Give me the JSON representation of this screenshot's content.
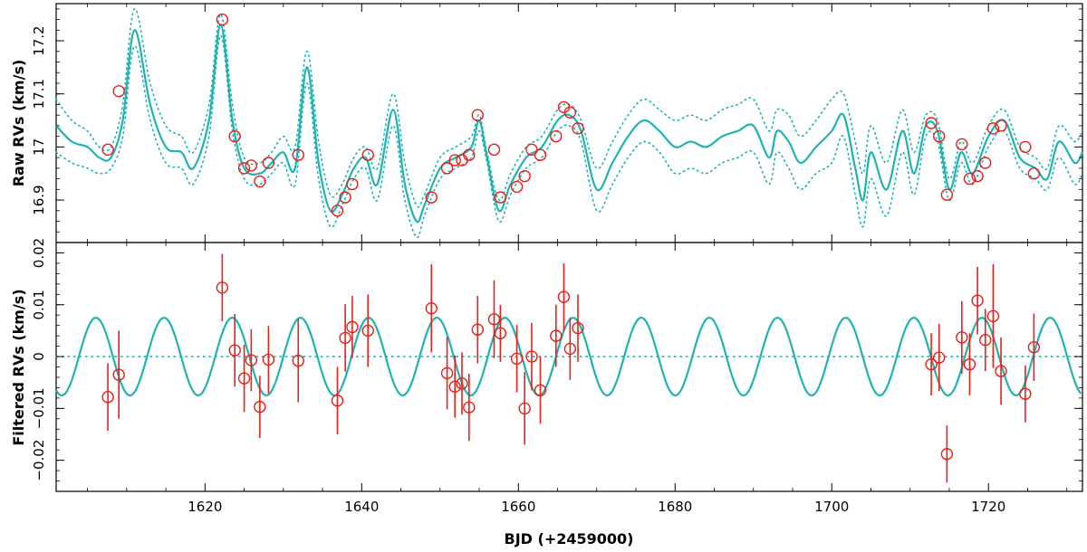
{
  "chart_data": [
    {
      "type": "line",
      "panel": "top",
      "title": "",
      "ylabel": "Raw RVs (km/s)",
      "xlim": [
        1601,
        1732
      ],
      "ylim": [
        16.82,
        17.27
      ],
      "yticks": [
        16.9,
        17,
        17.1,
        17.2
      ],
      "ytick_labels": [
        "16.9",
        "17",
        "17.1",
        "17.2"
      ],
      "xticks": [
        1620,
        1640,
        1660,
        1680,
        1700,
        1720
      ],
      "grid": false,
      "series": [
        {
          "role": "model",
          "style": "solid",
          "color": "#1fb3b3",
          "x": [
            1601,
            1603,
            1605,
            1606.5,
            1608,
            1609.5,
            1611,
            1613,
            1615,
            1617,
            1618.5,
            1620.5,
            1622,
            1623.5,
            1625,
            1627,
            1628.5,
            1630,
            1631.5,
            1633,
            1634.5,
            1636,
            1637.5,
            1639,
            1640.5,
            1642,
            1644,
            1645.5,
            1647,
            1648,
            1650,
            1652,
            1654,
            1655,
            1656,
            1657.5,
            1659,
            1661,
            1663,
            1665,
            1666.5,
            1668,
            1670,
            1672,
            1674,
            1676,
            1678,
            1680,
            1682,
            1684,
            1686,
            1688,
            1690,
            1692,
            1693,
            1694.5,
            1696,
            1698,
            1700,
            1701.5,
            1703,
            1704,
            1705,
            1707,
            1709,
            1710.5,
            1712,
            1713.5,
            1715,
            1716.5,
            1718,
            1720,
            1722,
            1724,
            1726,
            1727.5,
            1729,
            1731,
            1732
          ],
          "y": [
            17.04,
            17.01,
            17.0,
            16.98,
            16.98,
            17.05,
            17.22,
            17.08,
            17.0,
            16.99,
            16.96,
            17.05,
            17.23,
            17.05,
            16.96,
            16.95,
            16.97,
            16.99,
            16.96,
            17.15,
            16.97,
            16.88,
            16.91,
            16.96,
            16.98,
            16.93,
            17.07,
            16.93,
            16.86,
            16.89,
            16.96,
            16.98,
            17.0,
            17.05,
            16.98,
            16.88,
            16.93,
            16.98,
            17.0,
            17.05,
            17.06,
            17.03,
            16.92,
            16.97,
            17.02,
            17.05,
            17.03,
            17.0,
            17.01,
            17.0,
            17.02,
            17.03,
            17.04,
            16.98,
            17.03,
            17.01,
            16.97,
            17.0,
            17.03,
            17.06,
            16.96,
            16.9,
            16.99,
            16.92,
            17.03,
            16.95,
            17.04,
            17.03,
            16.92,
            16.99,
            16.95,
            17.02,
            17.05,
            16.98,
            16.96,
            16.94,
            17.01,
            16.97,
            16.99
          ]
        },
        {
          "role": "model-upper",
          "style": "dotted",
          "color": "#1fb3b3",
          "x": [
            1601,
            1603,
            1605,
            1606.5,
            1608,
            1609.5,
            1611,
            1613,
            1615,
            1617,
            1618.5,
            1620.5,
            1622,
            1623.5,
            1625,
            1627,
            1628.5,
            1630,
            1631.5,
            1633,
            1634.5,
            1636,
            1637.5,
            1639,
            1640.5,
            1642,
            1644,
            1645.5,
            1647,
            1648,
            1650,
            1652,
            1654,
            1655,
            1656,
            1657.5,
            1659,
            1661,
            1663,
            1665,
            1666.5,
            1668,
            1670,
            1672,
            1674,
            1676,
            1678,
            1680,
            1682,
            1684,
            1686,
            1688,
            1690,
            1692,
            1693,
            1694.5,
            1696,
            1698,
            1700,
            1701.5,
            1703,
            1704,
            1705,
            1707,
            1709,
            1710.5,
            1712,
            1713.5,
            1715,
            1716.5,
            1718,
            1720,
            1722,
            1724,
            1726,
            1727.5,
            1729,
            1731,
            1732
          ],
          "y": [
            17.09,
            17.05,
            17.03,
            17.0,
            17.0,
            17.08,
            17.26,
            17.12,
            17.04,
            17.02,
            16.99,
            17.08,
            17.25,
            17.08,
            16.98,
            16.97,
            16.99,
            17.02,
            17.0,
            17.18,
            17.01,
            16.91,
            16.93,
            16.98,
            17.0,
            16.96,
            17.1,
            16.97,
            16.89,
            16.91,
            16.98,
            17.0,
            17.02,
            17.06,
            16.99,
            16.9,
            16.95,
            17.0,
            17.02,
            17.07,
            17.08,
            17.05,
            16.96,
            17.01,
            17.06,
            17.09,
            17.07,
            17.05,
            17.06,
            17.05,
            17.07,
            17.08,
            17.09,
            17.03,
            17.07,
            17.06,
            17.02,
            17.05,
            17.09,
            17.1,
            17.01,
            16.95,
            17.04,
            16.97,
            17.07,
            16.99,
            17.06,
            17.05,
            16.94,
            17.01,
            16.97,
            17.04,
            17.07,
            17.0,
            16.98,
            16.96,
            17.04,
            17.01,
            17.03
          ]
        },
        {
          "role": "model-lower",
          "style": "dotted",
          "color": "#1fb3b3",
          "x": [
            1601,
            1603,
            1605,
            1606.5,
            1608,
            1609.5,
            1611,
            1613,
            1615,
            1617,
            1618.5,
            1620.5,
            1622,
            1623.5,
            1625,
            1627,
            1628.5,
            1630,
            1631.5,
            1633,
            1634.5,
            1636,
            1637.5,
            1639,
            1640.5,
            1642,
            1644,
            1645.5,
            1647,
            1648,
            1650,
            1652,
            1654,
            1655,
            1656,
            1657.5,
            1659,
            1661,
            1663,
            1665,
            1666.5,
            1668,
            1670,
            1672,
            1674,
            1676,
            1678,
            1680,
            1682,
            1684,
            1686,
            1688,
            1690,
            1692,
            1693,
            1694.5,
            1696,
            1698,
            1700,
            1701.5,
            1703,
            1704,
            1705,
            1707,
            1709,
            1710.5,
            1712,
            1713.5,
            1715,
            1716.5,
            1718,
            1720,
            1722,
            1724,
            1726,
            1727.5,
            1729,
            1731,
            1732
          ],
          "y": [
            16.99,
            16.97,
            16.96,
            16.95,
            16.96,
            17.02,
            17.19,
            17.05,
            16.97,
            16.96,
            16.93,
            17.02,
            17.21,
            17.03,
            16.94,
            16.93,
            16.95,
            16.97,
            16.93,
            17.12,
            16.94,
            16.85,
            16.89,
            16.94,
            16.96,
            16.9,
            17.04,
            16.9,
            16.83,
            16.87,
            16.94,
            16.96,
            16.98,
            17.03,
            16.97,
            16.86,
            16.91,
            16.96,
            16.98,
            17.03,
            17.04,
            17.01,
            16.88,
            16.93,
            16.98,
            17.01,
            16.99,
            16.95,
            16.96,
            16.95,
            16.97,
            16.98,
            16.99,
            16.93,
            16.99,
            16.96,
            16.92,
            16.95,
            16.97,
            17.02,
            16.91,
            16.85,
            16.94,
            16.87,
            16.99,
            16.91,
            17.02,
            17.01,
            16.9,
            16.97,
            16.93,
            17.0,
            17.03,
            16.96,
            16.94,
            16.92,
            16.98,
            16.93,
            16.95
          ]
        },
        {
          "role": "observations",
          "style": "circles",
          "color": "#e8201a",
          "x": [
            1607.6,
            1609.0,
            1622.2,
            1623.8,
            1625.0,
            1625.9,
            1627.0,
            1628.1,
            1631.9,
            1636.9,
            1637.9,
            1638.8,
            1640.8,
            1648.9,
            1650.9,
            1651.9,
            1652.8,
            1653.7,
            1654.8,
            1656.9,
            1657.7,
            1659.8,
            1660.8,
            1661.7,
            1662.8,
            1664.8,
            1665.8,
            1666.6,
            1667.6,
            1712.7,
            1713.7,
            1714.7,
            1716.6,
            1717.6,
            1718.6,
            1719.6,
            1720.6,
            1721.6,
            1724.7,
            1725.8
          ],
          "y": [
            16.995,
            17.105,
            17.24,
            17.02,
            16.96,
            16.965,
            16.935,
            16.97,
            16.985,
            16.88,
            16.905,
            16.93,
            16.985,
            16.905,
            16.96,
            16.975,
            16.975,
            16.985,
            17.06,
            16.995,
            16.905,
            16.925,
            16.945,
            16.995,
            16.985,
            17.02,
            17.075,
            17.065,
            17.035,
            17.045,
            17.02,
            16.91,
            17.005,
            16.94,
            16.945,
            16.97,
            17.035,
            17.04,
            17.0,
            16.95
          ]
        }
      ]
    },
    {
      "type": "scatter",
      "panel": "bottom",
      "title": "",
      "ylabel": "Filtered RVs (km/s)",
      "xlabel": "BJD (+2459000)",
      "xlim": [
        1601,
        1732
      ],
      "ylim": [
        -0.026,
        0.022
      ],
      "yticks": [
        -0.02,
        -0.01,
        0,
        0.01,
        0.02
      ],
      "ytick_labels": [
        "−0.02",
        "−0.01",
        "0",
        "0.01",
        "0.02"
      ],
      "xticks": [
        1620,
        1640,
        1660,
        1680,
        1700,
        1720
      ],
      "xtick_labels": [
        "1620",
        "1640",
        "1660",
        "1680",
        "1700",
        "1720"
      ],
      "grid": false,
      "model": {
        "type": "sinusoid",
        "amplitude": 0.0075,
        "period": 8.7,
        "phase_x": 1603.9,
        "zero_line": 0,
        "color": "#1fb3b3"
      },
      "series": [
        {
          "role": "filtered-observations",
          "color": "#e8201a",
          "x": [
            1607.6,
            1609.0,
            1622.2,
            1623.8,
            1625.0,
            1625.9,
            1627.0,
            1628.1,
            1631.9,
            1636.9,
            1637.9,
            1638.8,
            1640.8,
            1648.9,
            1650.9,
            1651.9,
            1652.8,
            1653.7,
            1654.8,
            1656.9,
            1657.7,
            1659.8,
            1660.8,
            1661.7,
            1662.8,
            1664.8,
            1665.8,
            1666.6,
            1667.6,
            1712.7,
            1713.7,
            1714.7,
            1716.6,
            1717.6,
            1718.6,
            1719.6,
            1720.6,
            1721.6,
            1724.7,
            1725.8
          ],
          "y": [
            -0.0078,
            -0.0035,
            0.0133,
            0.0012,
            -0.0042,
            -0.0007,
            -0.0097,
            -0.0006,
            -0.0008,
            -0.0085,
            0.0036,
            0.0057,
            0.005,
            0.0093,
            -0.0032,
            -0.0058,
            -0.0052,
            -0.0098,
            0.0052,
            0.0072,
            0.0045,
            -0.0004,
            -0.01,
            0.0,
            -0.0065,
            0.004,
            0.0115,
            0.0015,
            0.0055,
            -0.0015,
            -0.0002,
            -0.0188,
            0.0037,
            -0.0015,
            0.0108,
            0.0032,
            0.0078,
            -0.0028,
            -0.0072,
            0.0018
          ],
          "err": [
            0.0065,
            0.0085,
            0.0065,
            0.007,
            0.0065,
            0.006,
            0.006,
            0.0065,
            0.008,
            0.0065,
            0.0065,
            0.006,
            0.007,
            0.0085,
            0.007,
            0.006,
            0.006,
            0.0065,
            0.0065,
            0.0075,
            0.0055,
            0.0065,
            0.007,
            0.0065,
            0.0065,
            0.006,
            0.0065,
            0.006,
            0.0065,
            0.006,
            0.0065,
            0.0055,
            0.007,
            0.006,
            0.0065,
            0.006,
            0.01,
            0.0065,
            0.0055,
            0.0065
          ]
        }
      ]
    }
  ]
}
